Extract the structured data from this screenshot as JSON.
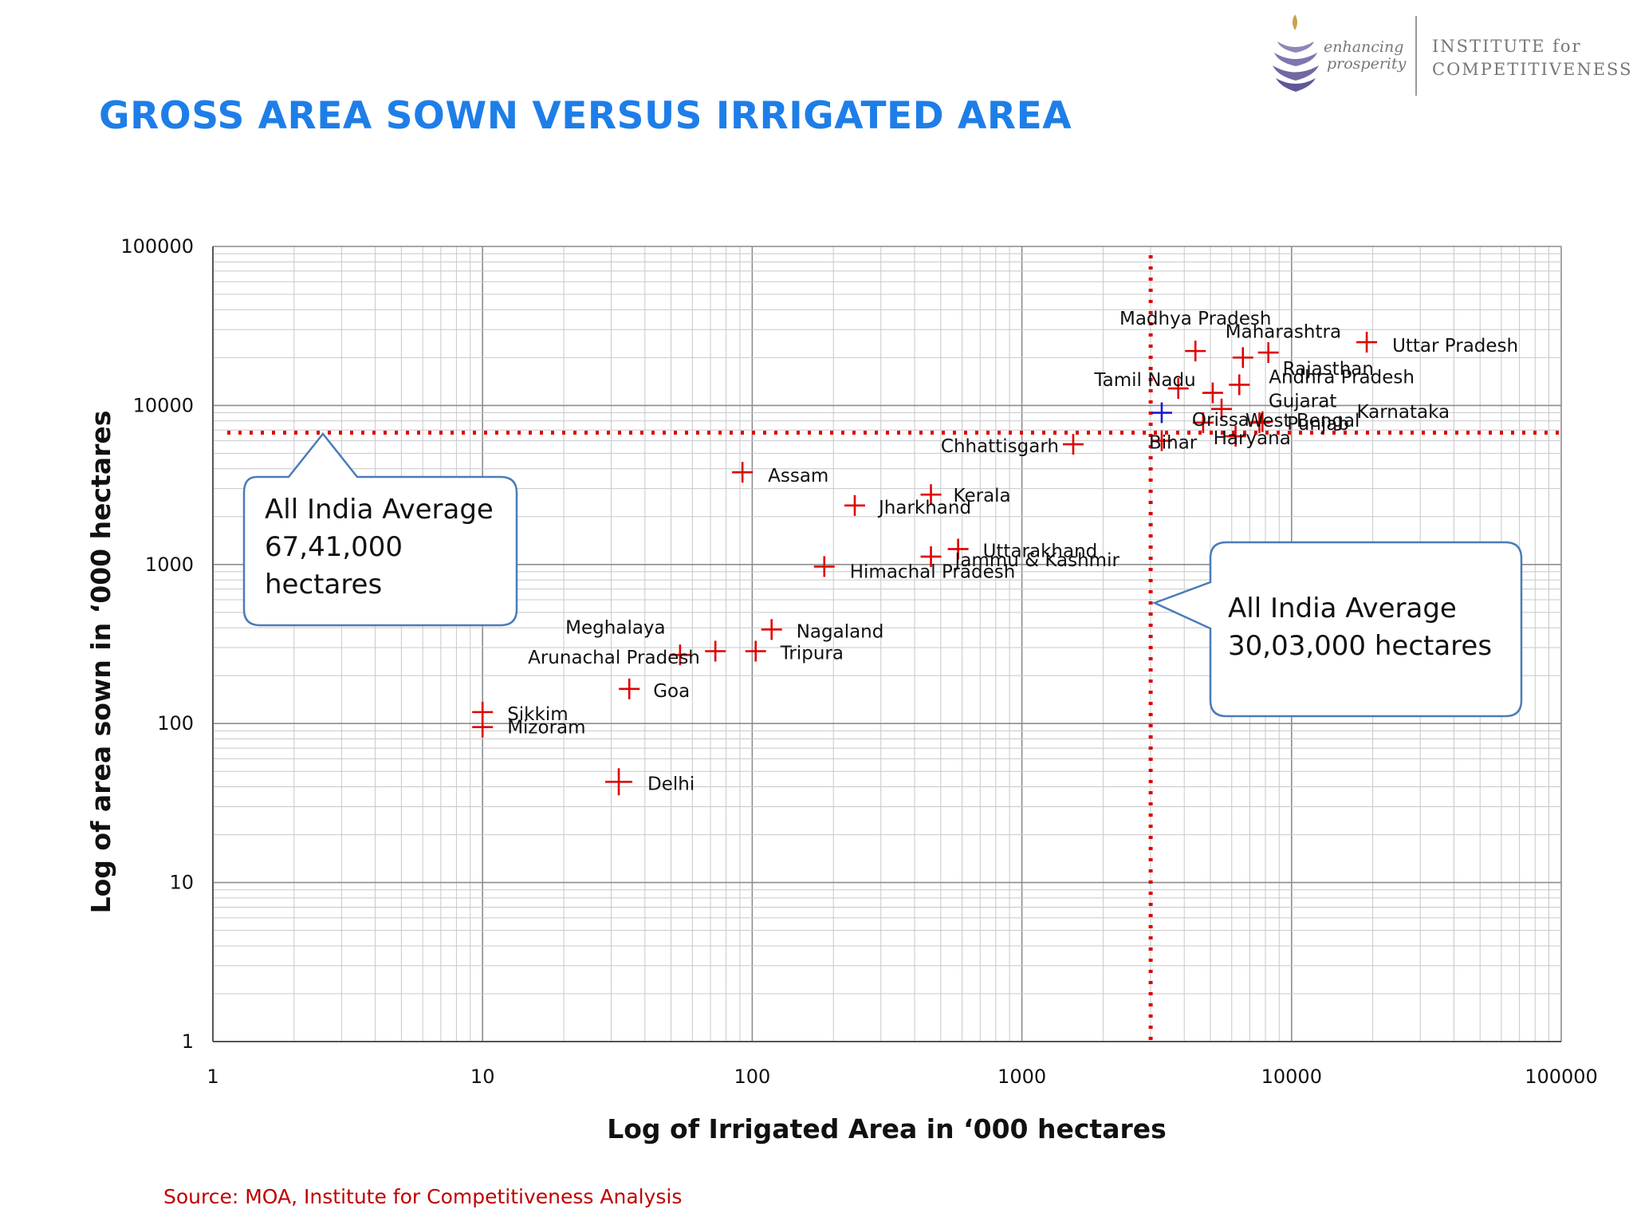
{
  "title": "GROSS AREA SOWN VERSUS IRRIGATED AREA",
  "logo": {
    "tagline_1": "enhancing",
    "tagline_2": "prosperity",
    "org_line_1": "INSTITUTE for",
    "org_line_2": "COMPETITIVENESS"
  },
  "source": "Source: MOA, Institute for Competitiveness Analysis",
  "chart_data": {
    "type": "scatter",
    "x_scale": "log",
    "y_scale": "log",
    "xlabel": "Log of Irrigated Area in ‘000 hectares",
    "ylabel": "Log of area sown in ‘000 hectares",
    "xlim": [
      1,
      100000
    ],
    "ylim": [
      1,
      100000
    ],
    "x_ticks": [
      "1",
      "10",
      "100",
      "1000",
      "10000",
      "100000"
    ],
    "y_ticks": [
      "1",
      "10",
      "100",
      "1000",
      "10000",
      "100000"
    ],
    "grid": true,
    "marker_color": "#e00000",
    "highlight_color": "#1a1ad0",
    "average_line_color": "#e00000",
    "points": [
      {
        "name": "Uttar Pradesh",
        "x": 19000,
        "y": 25000
      },
      {
        "name": "Madhya Pradesh",
        "x": 4400,
        "y": 22000
      },
      {
        "name": "Maharashtra",
        "x": 6600,
        "y": 20000
      },
      {
        "name": "Rajasthan",
        "x": 8200,
        "y": 21500
      },
      {
        "name": "Andhra Pradesh",
        "x": 6400,
        "y": 13500
      },
      {
        "name": "Tamil Nadu",
        "x": 3800,
        "y": 12800
      },
      {
        "name": "Gujarat",
        "x": 5100,
        "y": 12000
      },
      {
        "name": "West Bengal",
        "x": 5500,
        "y": 9500
      },
      {
        "name": "Karnataka",
        "x": 7600,
        "y": 7800
      },
      {
        "name": "Punjab",
        "x": 7800,
        "y": 7900
      },
      {
        "name": "Bihar",
        "x": 3300,
        "y": 6000
      },
      {
        "name": "Orissa",
        "x": 4700,
        "y": 7800
      },
      {
        "name": "Haryana",
        "x": 6200,
        "y": 6400
      },
      {
        "name": "Chhattisgarh",
        "x": 1550,
        "y": 5700
      },
      {
        "name": "Assam",
        "x": 92,
        "y": 3800
      },
      {
        "name": "Kerala",
        "x": 460,
        "y": 2750
      },
      {
        "name": "Jharkhand",
        "x": 240,
        "y": 2350
      },
      {
        "name": "Uttarakhand",
        "x": 580,
        "y": 1250
      },
      {
        "name": "Jammu & Kashmir",
        "x": 460,
        "y": 1120
      },
      {
        "name": "Himachal Pradesh",
        "x": 185,
        "y": 970
      },
      {
        "name": "Nagaland",
        "x": 118,
        "y": 390
      },
      {
        "name": "Meghalaya",
        "x": 73,
        "y": 285
      },
      {
        "name": "Arunachal Pradesh",
        "x": 54,
        "y": 270
      },
      {
        "name": "Tripura",
        "x": 103,
        "y": 285
      },
      {
        "name": "Goa",
        "x": 35,
        "y": 165
      },
      {
        "name": "Sikkim",
        "x": 10,
        "y": 118
      },
      {
        "name": "Mizoram",
        "x": 10,
        "y": 95
      },
      {
        "name": "Delhi",
        "x": 32,
        "y": 43
      }
    ],
    "all_india_point": {
      "x": 3300,
      "y": 9000
    },
    "averages": {
      "area_sown": {
        "value": 6741,
        "label": "All India Average 67,41,000 hectares"
      },
      "irrigated": {
        "value": 3003,
        "label": "All India Average 30,03,000 hectares"
      }
    },
    "callouts": {
      "sown_lines": [
        "All India Average",
        "67,41,000",
        "hectares"
      ],
      "irrigated_lines": [
        "All India Average",
        "30,03,000 hectares"
      ]
    }
  }
}
